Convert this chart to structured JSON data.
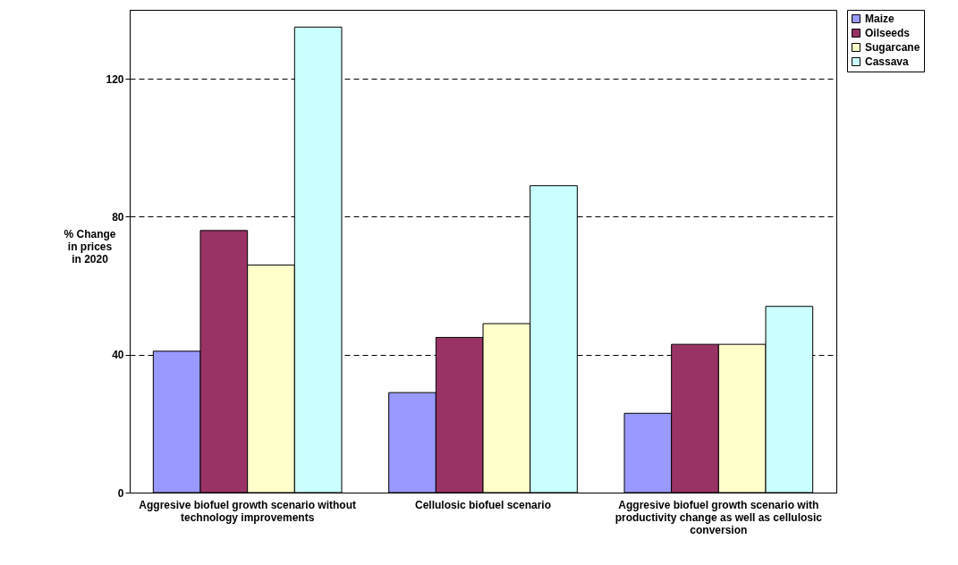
{
  "chart_data": {
    "type": "bar",
    "ylabel": "% Change in prices in 2020",
    "categories": [
      "Aggresive biofuel growth scenario without technology improvements",
      "Cellulosic biofuel scenario",
      "Aggresive biofuel growth scenario with productivity change as well as cellulosic conversion"
    ],
    "series": [
      {
        "name": "Maize",
        "color": "#9999ff",
        "values": [
          41,
          29,
          23
        ]
      },
      {
        "name": "Oilseeds",
        "color": "#993366",
        "values": [
          76,
          45,
          43
        ]
      },
      {
        "name": "Sugarcane",
        "color": "#ffffcc",
        "values": [
          66,
          49,
          43
        ]
      },
      {
        "name": "Cassava",
        "color": "#ccffff",
        "values": [
          135,
          89,
          54
        ]
      }
    ],
    "ylim": [
      0,
      140
    ],
    "yticks": [
      0,
      40,
      80,
      120
    ],
    "grid": "y",
    "legend": "right"
  }
}
